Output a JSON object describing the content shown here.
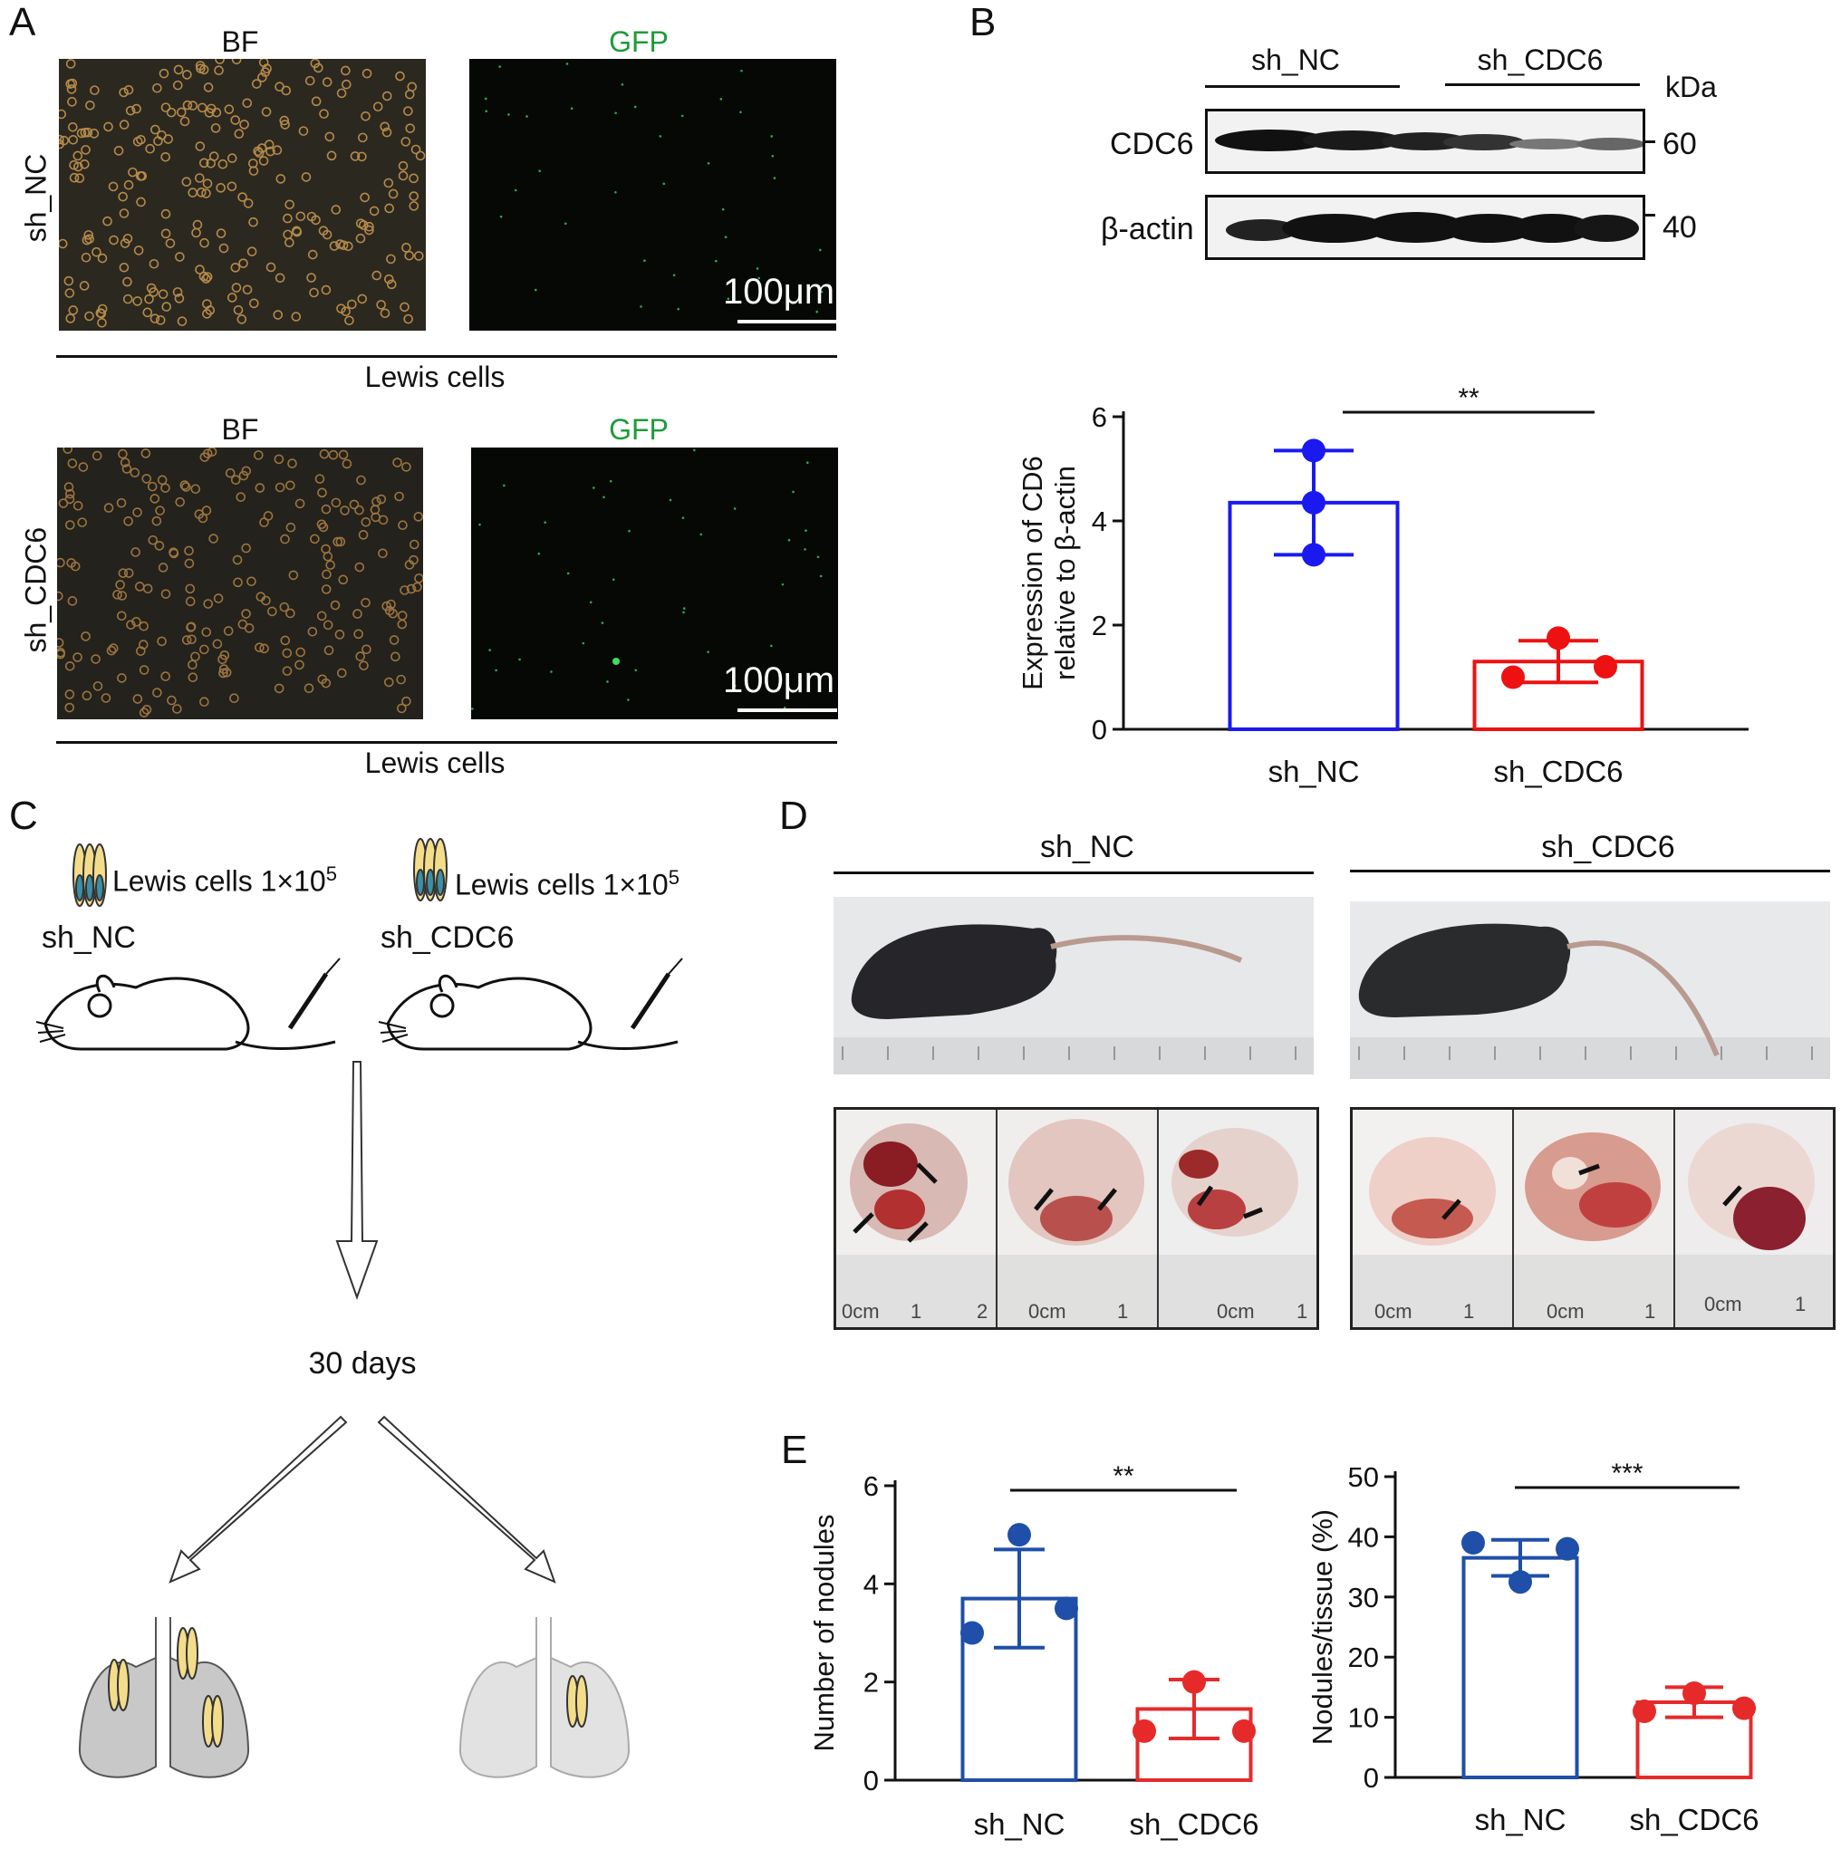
{
  "panels": {
    "A": "A",
    "B": "B",
    "C": "C",
    "D": "D",
    "E": "E"
  },
  "panel_a": {
    "col_bf": "BF",
    "col_gfp": "GFP",
    "row_nc": "sh_NC",
    "row_cdc6": "sh_CDC6",
    "scale_bar": "100μm",
    "group_label": "Lewis cells",
    "gfp_color": "#1f9a3a"
  },
  "panel_b_blot": {
    "lane_nc": "sh_NC",
    "lane_cdc6": "sh_CDC6",
    "unit": "kDa",
    "band_cdc6": "CDC6",
    "band_actin": "β-actin",
    "mw_60": "60",
    "mw_40": "40"
  },
  "panel_c": {
    "nc_cells": "Lewis cells 1×10",
    "nc_exp": "5",
    "cdc6_cells": "Lewis cells 1×10",
    "cdc6_exp": "5",
    "nc_label": "sh_NC",
    "cdc6_label": "sh_CDC6",
    "time": "30 days"
  },
  "panel_d": {
    "nc_label": "sh_NC",
    "cdc6_label": "sh_CDC6",
    "ruler_marks": [
      "0cm",
      "1",
      "2",
      "0cm",
      "1",
      "0cm",
      "1",
      "0cm",
      "1",
      "0cm",
      "1",
      "0cm",
      "1"
    ]
  },
  "colors": {
    "nc": "#1a1af0",
    "cdc6": "#ee1111",
    "nc_e": "#1f4fa8",
    "cdc6_e": "#e62a2a"
  },
  "chart_data": [
    {
      "type": "bar",
      "panel": "B",
      "categories": [
        "sh_NC",
        "sh_CDC6"
      ],
      "values": [
        4.35,
        1.3
      ],
      "error": [
        1.0,
        0.4
      ],
      "points": [
        [
          5.35,
          4.35,
          3.35
        ],
        [
          1.75,
          1.0,
          1.2
        ]
      ],
      "ylabel_line1": "Expression of CD6",
      "ylabel_line2": "relative to β-actin",
      "ylim": [
        0,
        6
      ],
      "yticks": [
        "0",
        "2",
        "4",
        "6"
      ],
      "significance": "**"
    },
    {
      "type": "bar",
      "panel": "E-left",
      "categories": [
        "sh_NC",
        "sh_CDC6"
      ],
      "values": [
        3.7,
        1.45
      ],
      "error": [
        1.0,
        0.6
      ],
      "points": [
        [
          5.0,
          3.5,
          3.0
        ],
        [
          2.0,
          1.0,
          1.0
        ]
      ],
      "ylabel": "Number of nodules",
      "ylim": [
        0,
        6
      ],
      "yticks": [
        "0",
        "2",
        "4",
        "6"
      ],
      "significance": "**"
    },
    {
      "type": "bar",
      "panel": "E-right",
      "categories": [
        "sh_NC",
        "sh_CDC6"
      ],
      "values": [
        36.5,
        12.5
      ],
      "error": [
        3.0,
        2.5
      ],
      "points": [
        [
          39.0,
          32.5,
          38.0
        ],
        [
          11.0,
          14.0,
          11.5
        ]
      ],
      "ylabel": "Nodules/tissue (%)",
      "ylim": [
        0,
        50
      ],
      "yticks": [
        "0",
        "10",
        "20",
        "30",
        "40",
        "50"
      ],
      "significance": "***"
    }
  ]
}
